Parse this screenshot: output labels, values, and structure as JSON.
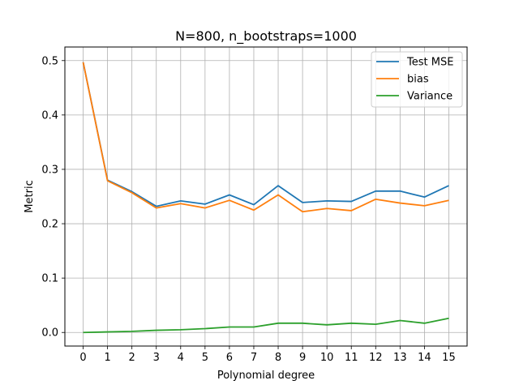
{
  "chart_data": {
    "type": "line",
    "title": "N=800, n_bootstraps=1000",
    "xlabel": "Polynomial degree",
    "ylabel": "Metric",
    "x": [
      0,
      1,
      2,
      3,
      4,
      5,
      6,
      7,
      8,
      9,
      10,
      11,
      12,
      13,
      14,
      15
    ],
    "xticks": [
      "0",
      "1",
      "2",
      "3",
      "4",
      "5",
      "6",
      "7",
      "8",
      "9",
      "10",
      "11",
      "12",
      "13",
      "14",
      "15"
    ],
    "yticks": [
      "0.0",
      "0.1",
      "0.2",
      "0.3",
      "0.4",
      "0.5"
    ],
    "xlim": [
      -0.75,
      15.75
    ],
    "ylim": [
      -0.025,
      0.525
    ],
    "grid": true,
    "legend_position": "top-right",
    "series": [
      {
        "name": "Test MSE",
        "color": "#1f77b4",
        "values": [
          0.497,
          0.28,
          0.259,
          0.232,
          0.242,
          0.236,
          0.253,
          0.235,
          0.27,
          0.239,
          0.242,
          0.241,
          0.26,
          0.26,
          0.249,
          0.27
        ]
      },
      {
        "name": "bias",
        "color": "#ff7f0e",
        "values": [
          0.497,
          0.279,
          0.257,
          0.229,
          0.237,
          0.229,
          0.243,
          0.225,
          0.253,
          0.222,
          0.228,
          0.224,
          0.245,
          0.238,
          0.233,
          0.243
        ]
      },
      {
        "name": "Variance",
        "color": "#2ca02c",
        "values": [
          0.0,
          0.001,
          0.002,
          0.004,
          0.005,
          0.007,
          0.01,
          0.01,
          0.017,
          0.017,
          0.014,
          0.017,
          0.015,
          0.022,
          0.017,
          0.026
        ]
      }
    ]
  }
}
